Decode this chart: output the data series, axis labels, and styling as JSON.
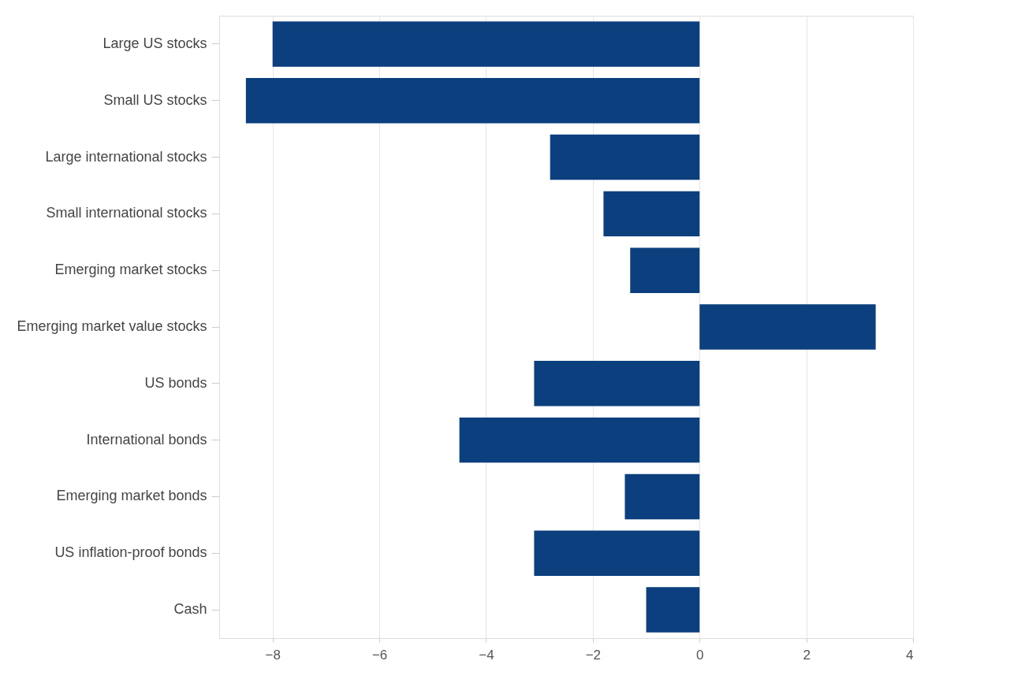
{
  "chart_data": {
    "type": "bar",
    "orientation": "horizontal",
    "categories": [
      "Large US stocks",
      "Small US stocks",
      "Large international stocks",
      "Small international stocks",
      "Emerging market stocks",
      "Emerging market value stocks",
      "US bonds",
      "International bonds",
      "Emerging market bonds",
      "US inflation-proof bonds",
      "Cash"
    ],
    "values": [
      -8.0,
      -8.5,
      -2.8,
      -1.8,
      -1.3,
      3.3,
      -3.1,
      -4.5,
      -1.4,
      -3.1,
      -1.0
    ],
    "color": "#0b3f7e",
    "xlim": [
      -9,
      4
    ],
    "xticks": [
      -8,
      -6,
      -4,
      -2,
      0,
      2,
      4
    ],
    "grid": "x"
  }
}
